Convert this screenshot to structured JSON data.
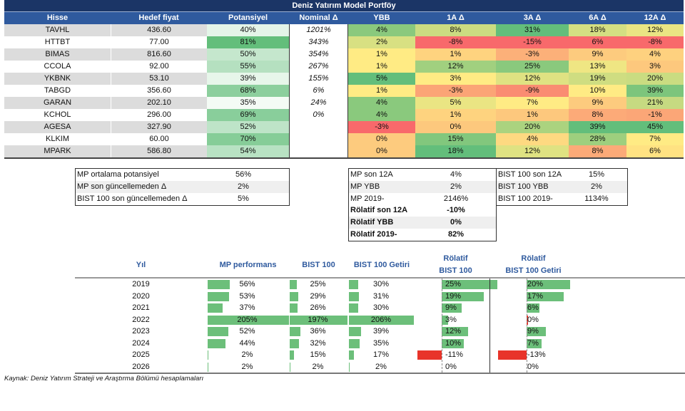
{
  "title": "Deniz Yatırım Model Portföy",
  "columns": [
    "Hisse",
    "Hedef fiyat",
    "Potansiyel",
    "Nominal  Δ",
    "YBB",
    "1A Δ",
    "3A Δ",
    "6A Δ",
    "12A Δ"
  ],
  "rows": [
    [
      "TAVHL",
      "436.60",
      "40%",
      "1201%",
      "4%",
      "8%",
      "31%",
      "18%",
      "12%"
    ],
    [
      "HTTBT",
      "77.00",
      "81%",
      "343%",
      "2%",
      "-8%",
      "-15%",
      "6%",
      "-8%"
    ],
    [
      "BIMAS",
      "816.60",
      "50%",
      "354%",
      "1%",
      "1%",
      "-3%",
      "9%",
      "4%"
    ],
    [
      "CCOLA",
      "92.00",
      "55%",
      "267%",
      "1%",
      "12%",
      "25%",
      "13%",
      "3%"
    ],
    [
      "YKBNK",
      "53.10",
      "39%",
      "155%",
      "5%",
      "3%",
      "12%",
      "19%",
      "20%"
    ],
    [
      "TABGD",
      "356.60",
      "68%",
      "6%",
      "1%",
      "-3%",
      "-9%",
      "10%",
      "39%"
    ],
    [
      "GARAN",
      "202.10",
      "35%",
      "24%",
      "4%",
      "5%",
      "7%",
      "9%",
      "21%"
    ],
    [
      "KCHOL",
      "296.00",
      "69%",
      "0%",
      "4%",
      "1%",
      "1%",
      "8%",
      "-1%"
    ],
    [
      "AGESA",
      "327.90",
      "52%",
      "",
      "-3%",
      "0%",
      "20%",
      "39%",
      "45%"
    ],
    [
      "KLKIM",
      "60.00",
      "70%",
      "",
      "0%",
      "15%",
      "4%",
      "28%",
      "7%"
    ],
    [
      "MPARK",
      "586.80",
      "54%",
      "",
      "0%",
      "18%",
      "12%",
      "8%",
      "6%"
    ]
  ],
  "summary1": [
    [
      "MP ortalama potansiyel",
      "56%"
    ],
    [
      "MP son güncellemeden Δ",
      "2%"
    ],
    [
      "BIST 100 son güncellemeden Δ",
      "5%"
    ]
  ],
  "summary2": [
    [
      "MP son 12A",
      "4%"
    ],
    [
      "MP YBB",
      "2%"
    ],
    [
      "MP 2019-",
      "2146%"
    ]
  ],
  "summary3": [
    [
      "BIST 100 son 12A",
      "15%"
    ],
    [
      "BIST 100 YBB",
      "2%"
    ],
    [
      "BIST 100 2019-",
      "1134%"
    ]
  ],
  "summary4": [
    [
      "Rölatif son 12A",
      "-10%"
    ],
    [
      "Rölatif YBB",
      "0%"
    ],
    [
      "Rölatif 2019-",
      "82%"
    ]
  ],
  "perf": {
    "headers": {
      "year": "Yıl",
      "mp": "MP performans",
      "bist": "BIST 100",
      "getiri": "BIST 100 Getiri",
      "rel1a": "Rölatif",
      "rel1b": "BIST 100",
      "rel2a": "Rölatif",
      "rel2b": "BIST 100 Getiri"
    },
    "rows": [
      {
        "year": "2019",
        "mp": 56,
        "bist": 25,
        "getiri": 30,
        "rel1": 25,
        "rel2": 20
      },
      {
        "year": "2020",
        "mp": 53,
        "bist": 29,
        "getiri": 31,
        "rel1": 19,
        "rel2": 17
      },
      {
        "year": "2021",
        "mp": 37,
        "bist": 26,
        "getiri": 30,
        "rel1": 9,
        "rel2": 6
      },
      {
        "year": "2022",
        "mp": 205,
        "bist": 197,
        "getiri": 206,
        "rel1": 3,
        "rel2": 0
      },
      {
        "year": "2023",
        "mp": 52,
        "bist": 36,
        "getiri": 39,
        "rel1": 12,
        "rel2": 9
      },
      {
        "year": "2024",
        "mp": 44,
        "bist": 32,
        "getiri": 35,
        "rel1": 10,
        "rel2": 7
      },
      {
        "year": "2025",
        "mp": 2,
        "bist": 15,
        "getiri": 17,
        "rel1": -11,
        "rel2": -13
      },
      {
        "year": "2026",
        "mp": 2,
        "bist": 2,
        "getiri": 2,
        "rel1": 0,
        "rel2": 0
      }
    ]
  },
  "source": "Kaynak: Deniz Yatırım Strateji ve Araştırma Bölümü hesaplamaları",
  "colors": {
    "navy": "#1b3566",
    "blue": "#2f5a9e",
    "green": "#63be7b",
    "yellow": "#ffeb84",
    "red": "#f8696b",
    "bar": "#6cbf7a",
    "neg": "#e8342a"
  }
}
